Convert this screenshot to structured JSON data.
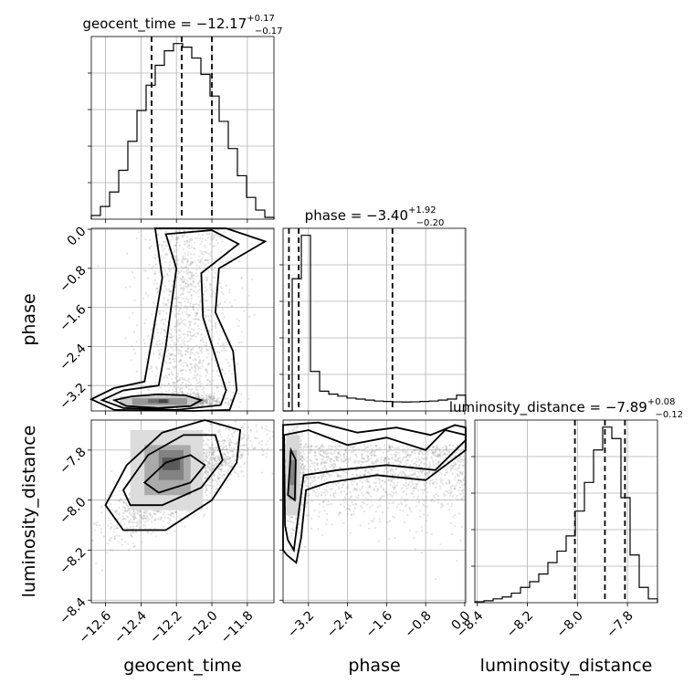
{
  "chart_data": {
    "type": "corner",
    "parameters": [
      {
        "name": "geocent_time",
        "title": "geocent_time = −12.17",
        "sup": "+0.17",
        "sub": "−0.17",
        "range": [
          -12.68,
          -11.65
        ],
        "ticks": [
          -12.6,
          -12.4,
          -12.2,
          -12.0,
          -11.8
        ],
        "tick_labels": [
          "−12.6",
          "−12.4",
          "−12.2",
          "−12.0",
          "−11.8"
        ],
        "quantiles": [
          -12.34,
          -12.17,
          -12.0
        ],
        "histogram": [
          0.02,
          0.07,
          0.15,
          0.27,
          0.43,
          0.6,
          0.74,
          0.85,
          0.93,
          0.97,
          0.95,
          0.89,
          0.8,
          0.68,
          0.54,
          0.39,
          0.24,
          0.12,
          0.05,
          0.01
        ]
      },
      {
        "name": "phase",
        "title": "phase = −3.40",
        "sup": "+1.92",
        "sub": "−0.20",
        "range": [
          -3.72,
          0.02
        ],
        "ticks": [
          -3.2,
          -2.4,
          -1.6,
          -0.8,
          0.0
        ],
        "tick_labels": [
          "−3.2",
          "−2.4",
          "−1.6",
          "−0.8",
          "0.0"
        ],
        "quantiles": [
          -3.6,
          -3.4,
          -1.48
        ],
        "histogram": [
          0.0,
          0.67,
          0.89,
          0.2,
          0.1,
          0.085,
          0.075,
          0.065,
          0.06,
          0.055,
          0.05,
          0.048,
          0.046,
          0.045,
          0.046,
          0.048,
          0.05,
          0.055,
          0.06,
          0.08
        ]
      },
      {
        "name": "luminosity_distance",
        "title": "luminosity_distance = −7.89",
        "sup": "+0.08",
        "sub": "−0.12",
        "range": [
          -8.41,
          -7.68
        ],
        "ticks": [
          -8.4,
          -8.2,
          -8.0,
          -7.8
        ],
        "tick_labels": [
          "−8.4",
          "−8.2",
          "−8.0",
          "−7.8"
        ],
        "quantiles": [
          -8.01,
          -7.89,
          -7.81
        ],
        "histogram": [
          0.005,
          0.01,
          0.02,
          0.03,
          0.05,
          0.08,
          0.11,
          0.15,
          0.21,
          0.27,
          0.35,
          0.48,
          0.63,
          0.8,
          0.92,
          0.86,
          0.55,
          0.25,
          0.08,
          0.02
        ]
      }
    ],
    "panels": {
      "phase_vs_geocent_time": {
        "x": "geocent_time",
        "y": "phase",
        "density_peak": {
          "x": -12.2,
          "y": -3.52
        },
        "y_ticks": [
          0.0,
          -0.8,
          -1.6,
          -2.4,
          -3.2
        ],
        "y_tick_labels": [
          "0.0",
          "−0.8",
          "−1.6",
          "−2.4",
          "−3.2"
        ]
      },
      "luminosity_distance_vs_geocent_time": {
        "x": "geocent_time",
        "y": "luminosity_distance",
        "density_peak": {
          "x": -12.2,
          "y": -7.85
        },
        "y_ticks": [
          -7.8,
          -8.0,
          -8.2,
          -8.4
        ],
        "y_tick_labels": [
          "−7.8",
          "−8.0",
          "−8.2",
          "−8.4"
        ]
      },
      "luminosity_distance_vs_phase": {
        "x": "phase",
        "y": "luminosity_distance",
        "density_peak": {
          "x": -3.55,
          "y": -7.9
        }
      }
    },
    "axis_labels": {
      "x": [
        "geocent_time",
        "phase",
        "luminosity_distance"
      ],
      "y": [
        "phase",
        "luminosity_distance"
      ]
    },
    "grid": true
  }
}
